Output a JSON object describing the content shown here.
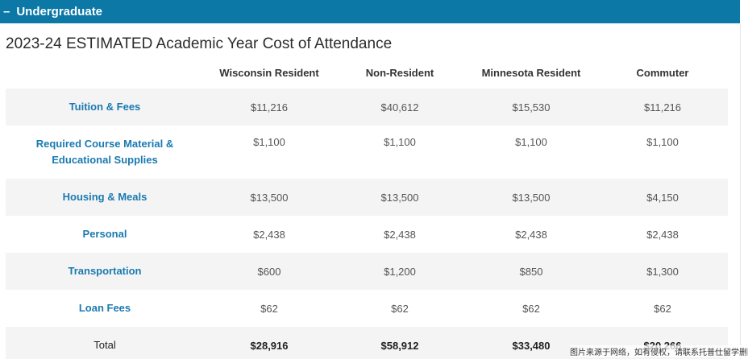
{
  "accordion": {
    "toggle_symbol": "–",
    "label": "Undergraduate"
  },
  "section": {
    "title": "2023-24 ESTIMATED Academic Year Cost of Attendance"
  },
  "table": {
    "columns": [
      "Wisconsin Resident",
      "Non-Resident",
      "Minnesota Resident",
      "Commuter"
    ],
    "rows": [
      {
        "label": "Tuition & Fees",
        "values": [
          "$11,216",
          "$40,612",
          "$15,530",
          "$11,216"
        ]
      },
      {
        "label_line1": "Required Course Material &",
        "label_line2": "Educational Supplies",
        "values": [
          "$1,100",
          "$1,100",
          "$1,100",
          "$1,100"
        ]
      },
      {
        "label": "Housing & Meals",
        "values": [
          "$13,500",
          "$13,500",
          "$13,500",
          "$4,150"
        ]
      },
      {
        "label": "Personal",
        "values": [
          "$2,438",
          "$2,438",
          "$2,438",
          "$2,438"
        ]
      },
      {
        "label": "Transportation",
        "values": [
          "$600",
          "$1,200",
          "$850",
          "$1,300"
        ]
      },
      {
        "label": "Loan Fees",
        "values": [
          "$62",
          "$62",
          "$62",
          "$62"
        ]
      },
      {
        "label": "Total",
        "values": [
          "$28,916",
          "$58,912",
          "$33,480",
          "$20,266"
        ]
      }
    ]
  },
  "watermark": {
    "text": "图片来源于网络，如有侵权，请联系托普仕留学删除"
  }
}
